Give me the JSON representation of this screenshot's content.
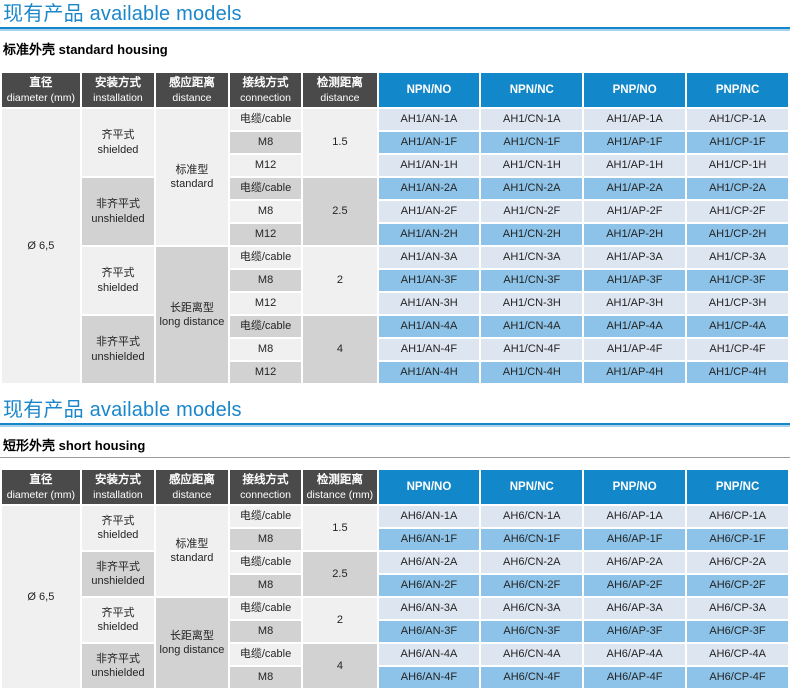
{
  "colors": {
    "accent_blue": "#1287c9",
    "title_blue": "#1b87ca",
    "header_dark": "#4a4a4a",
    "cell_gray_light": "#f0f0f0",
    "cell_gray_dark": "#d2d2d2",
    "cell_blue_light": "#dde5f1",
    "cell_blue_mid": "#8dc3e8"
  },
  "sections": [
    {
      "title_zh": "现有产品",
      "title_en": "available models",
      "subtitle_zh": "标准外壳",
      "subtitle_en": "standard housing",
      "table": {
        "headers": [
          {
            "type": "gray",
            "zh": "直径",
            "en": "diameter (mm)"
          },
          {
            "type": "gray",
            "zh": "安装方式",
            "en": "installation"
          },
          {
            "type": "gray",
            "zh": "感应距离",
            "en": "distance"
          },
          {
            "type": "gray",
            "zh": "接线方式",
            "en": "connection"
          },
          {
            "type": "gray",
            "zh": "检测距离",
            "en": "distance"
          },
          {
            "type": "blue",
            "label": "NPN/NO"
          },
          {
            "type": "blue",
            "label": "NPN/NC"
          },
          {
            "type": "blue",
            "label": "PNP/NO"
          },
          {
            "type": "blue",
            "label": "PNP/NC"
          }
        ],
        "rows": [
          [
            {
              "t": "Ø 6,5",
              "rs": 12,
              "tone": "g1",
              "n": "diameter-cell"
            },
            {
              "zh": "齐平式",
              "en": "shielded",
              "rs": 3,
              "tone": "g1",
              "n": "installation-cell"
            },
            {
              "zh": "标准型",
              "en": "standard",
              "rs": 6,
              "tone": "g1",
              "n": "sensing-type-cell"
            },
            {
              "t": "电缆/cable",
              "tone": "g1",
              "n": "connection-cell"
            },
            {
              "t": "1.5",
              "rs": 3,
              "tone": "g1",
              "n": "detection-distance-cell"
            },
            {
              "t": "AH1/AN-1A",
              "tone": "b1",
              "n": "model-cell"
            },
            {
              "t": "AH1/CN-1A",
              "tone": "b1",
              "n": "model-cell"
            },
            {
              "t": "AH1/AP-1A",
              "tone": "b1",
              "n": "model-cell"
            },
            {
              "t": "AH1/CP-1A",
              "tone": "b1",
              "n": "model-cell"
            }
          ],
          [
            {
              "t": "M8",
              "tone": "g2",
              "n": "connection-cell"
            },
            {
              "t": "AH1/AN-1F",
              "tone": "b2",
              "n": "model-cell"
            },
            {
              "t": "AH1/CN-1F",
              "tone": "b2",
              "n": "model-cell"
            },
            {
              "t": "AH1/AP-1F",
              "tone": "b2",
              "n": "model-cell"
            },
            {
              "t": "AH1/CP-1F",
              "tone": "b2",
              "n": "model-cell"
            }
          ],
          [
            {
              "t": "M12",
              "tone": "g1",
              "n": "connection-cell"
            },
            {
              "t": "AH1/AN-1H",
              "tone": "b1",
              "n": "model-cell"
            },
            {
              "t": "AH1/CN-1H",
              "tone": "b1",
              "n": "model-cell"
            },
            {
              "t": "AH1/AP-1H",
              "tone": "b1",
              "n": "model-cell"
            },
            {
              "t": "AH1/CP-1H",
              "tone": "b1",
              "n": "model-cell"
            }
          ],
          [
            {
              "zh": "非齐平式",
              "en": "unshielded",
              "rs": 3,
              "tone": "g2",
              "n": "installation-cell"
            },
            {
              "t": "电缆/cable",
              "tone": "g2",
              "n": "connection-cell"
            },
            {
              "t": "2.5",
              "rs": 3,
              "tone": "g2",
              "n": "detection-distance-cell"
            },
            {
              "t": "AH1/AN-2A",
              "tone": "b2",
              "n": "model-cell"
            },
            {
              "t": "AH1/CN-2A",
              "tone": "b2",
              "n": "model-cell"
            },
            {
              "t": "AH1/AP-2A",
              "tone": "b2",
              "n": "model-cell"
            },
            {
              "t": "AH1/CP-2A",
              "tone": "b2",
              "n": "model-cell"
            }
          ],
          [
            {
              "t": "M8",
              "tone": "g1",
              "n": "connection-cell"
            },
            {
              "t": "AH1/AN-2F",
              "tone": "b1",
              "n": "model-cell"
            },
            {
              "t": "AH1/CN-2F",
              "tone": "b1",
              "n": "model-cell"
            },
            {
              "t": "AH1/AP-2F",
              "tone": "b1",
              "n": "model-cell"
            },
            {
              "t": "AH1/CP-2F",
              "tone": "b1",
              "n": "model-cell"
            }
          ],
          [
            {
              "t": "M12",
              "tone": "g2",
              "n": "connection-cell"
            },
            {
              "t": "AH1/AN-2H",
              "tone": "b2",
              "n": "model-cell"
            },
            {
              "t": "AH1/CN-2H",
              "tone": "b2",
              "n": "model-cell"
            },
            {
              "t": "AH1/AP-2H",
              "tone": "b2",
              "n": "model-cell"
            },
            {
              "t": "AH1/CP-2H",
              "tone": "b2",
              "n": "model-cell"
            }
          ],
          [
            {
              "zh": "齐平式",
              "en": "shielded",
              "rs": 3,
              "tone": "g1",
              "n": "installation-cell"
            },
            {
              "zh": "长距离型",
              "en": "long distance",
              "rs": 6,
              "tone": "g2",
              "n": "sensing-type-cell"
            },
            {
              "t": "电缆/cable",
              "tone": "g1",
              "n": "connection-cell"
            },
            {
              "t": "2",
              "rs": 3,
              "tone": "g1",
              "n": "detection-distance-cell"
            },
            {
              "t": "AH1/AN-3A",
              "tone": "b1",
              "n": "model-cell"
            },
            {
              "t": "AH1/CN-3A",
              "tone": "b1",
              "n": "model-cell"
            },
            {
              "t": "AH1/AP-3A",
              "tone": "b1",
              "n": "model-cell"
            },
            {
              "t": "AH1/CP-3A",
              "tone": "b1",
              "n": "model-cell"
            }
          ],
          [
            {
              "t": "M8",
              "tone": "g2",
              "n": "connection-cell"
            },
            {
              "t": "AH1/AN-3F",
              "tone": "b2",
              "n": "model-cell"
            },
            {
              "t": "AH1/CN-3F",
              "tone": "b2",
              "n": "model-cell"
            },
            {
              "t": "AH1/AP-3F",
              "tone": "b2",
              "n": "model-cell"
            },
            {
              "t": "AH1/CP-3F",
              "tone": "b2",
              "n": "model-cell"
            }
          ],
          [
            {
              "t": "M12",
              "tone": "g1",
              "n": "connection-cell"
            },
            {
              "t": "AH1/AN-3H",
              "tone": "b1",
              "n": "model-cell"
            },
            {
              "t": "AH1/CN-3H",
              "tone": "b1",
              "n": "model-cell"
            },
            {
              "t": "AH1/AP-3H",
              "tone": "b1",
              "n": "model-cell"
            },
            {
              "t": "AH1/CP-3H",
              "tone": "b1",
              "n": "model-cell"
            }
          ],
          [
            {
              "zh": "非齐平式",
              "en": "unshielded",
              "rs": 3,
              "tone": "g2",
              "n": "installation-cell"
            },
            {
              "t": "电缆/cable",
              "tone": "g2",
              "n": "connection-cell"
            },
            {
              "t": "4",
              "rs": 3,
              "tone": "g2",
              "n": "detection-distance-cell"
            },
            {
              "t": "AH1/AN-4A",
              "tone": "b2",
              "n": "model-cell"
            },
            {
              "t": "AH1/CN-4A",
              "tone": "b2",
              "n": "model-cell"
            },
            {
              "t": "AH1/AP-4A",
              "tone": "b2",
              "n": "model-cell"
            },
            {
              "t": "AH1/CP-4A",
              "tone": "b2",
              "n": "model-cell"
            }
          ],
          [
            {
              "t": "M8",
              "tone": "g1",
              "n": "connection-cell"
            },
            {
              "t": "AH1/AN-4F",
              "tone": "b1",
              "n": "model-cell"
            },
            {
              "t": "AH1/CN-4F",
              "tone": "b1",
              "n": "model-cell"
            },
            {
              "t": "AH1/AP-4F",
              "tone": "b1",
              "n": "model-cell"
            },
            {
              "t": "AH1/CP-4F",
              "tone": "b1",
              "n": "model-cell"
            }
          ],
          [
            {
              "t": "M12",
              "tone": "g2",
              "n": "connection-cell"
            },
            {
              "t": "AH1/AN-4H",
              "tone": "b2",
              "n": "model-cell"
            },
            {
              "t": "AH1/CN-4H",
              "tone": "b2",
              "n": "model-cell"
            },
            {
              "t": "AH1/AP-4H",
              "tone": "b2",
              "n": "model-cell"
            },
            {
              "t": "AH1/CP-4H",
              "tone": "b2",
              "n": "model-cell"
            }
          ]
        ]
      }
    },
    {
      "title_zh": "现有产品",
      "title_en": "available models",
      "subtitle_zh": "短形外壳",
      "subtitle_en": "short housing",
      "table": {
        "headers": [
          {
            "type": "gray",
            "zh": "直径",
            "en": "diameter (mm)"
          },
          {
            "type": "gray",
            "zh": "安装方式",
            "en": "installation"
          },
          {
            "type": "gray",
            "zh": "感应距离",
            "en": "distance"
          },
          {
            "type": "gray",
            "zh": "接线方式",
            "en": "connection"
          },
          {
            "type": "gray",
            "zh": "检测距离",
            "en": "distance (mm)"
          },
          {
            "type": "blue",
            "label": "NPN/NO"
          },
          {
            "type": "blue",
            "label": "NPN/NC"
          },
          {
            "type": "blue",
            "label": "PNP/NO"
          },
          {
            "type": "blue",
            "label": "PNP/NC"
          }
        ],
        "rows": [
          [
            {
              "t": "Ø 6,5",
              "rs": 8,
              "tone": "g1",
              "n": "diameter-cell"
            },
            {
              "zh": "齐平式",
              "en": "shielded",
              "rs": 2,
              "tone": "g1",
              "n": "installation-cell"
            },
            {
              "zh": "标准型",
              "en": "standard",
              "rs": 4,
              "tone": "g1",
              "n": "sensing-type-cell"
            },
            {
              "t": "电缆/cable",
              "tone": "g1",
              "n": "connection-cell"
            },
            {
              "t": "1.5",
              "rs": 2,
              "tone": "g1",
              "n": "detection-distance-cell"
            },
            {
              "t": "AH6/AN-1A",
              "tone": "b1",
              "n": "model-cell"
            },
            {
              "t": "AH6/CN-1A",
              "tone": "b1",
              "n": "model-cell"
            },
            {
              "t": "AH6/AP-1A",
              "tone": "b1",
              "n": "model-cell"
            },
            {
              "t": "AH6/CP-1A",
              "tone": "b1",
              "n": "model-cell"
            }
          ],
          [
            {
              "t": "M8",
              "tone": "g2",
              "n": "connection-cell"
            },
            {
              "t": "AH6/AN-1F",
              "tone": "b2",
              "n": "model-cell"
            },
            {
              "t": "AH6/CN-1F",
              "tone": "b2",
              "n": "model-cell"
            },
            {
              "t": "AH6/AP-1F",
              "tone": "b2",
              "n": "model-cell"
            },
            {
              "t": "AH6/CP-1F",
              "tone": "b2",
              "n": "model-cell"
            }
          ],
          [
            {
              "zh": "非齐平式",
              "en": "unshielded",
              "rs": 2,
              "tone": "g2",
              "n": "installation-cell"
            },
            {
              "t": "电缆/cable",
              "tone": "g1",
              "n": "connection-cell"
            },
            {
              "t": "2.5",
              "rs": 2,
              "tone": "g2",
              "n": "detection-distance-cell"
            },
            {
              "t": "AH6/AN-2A",
              "tone": "b1",
              "n": "model-cell"
            },
            {
              "t": "AH6/CN-2A",
              "tone": "b1",
              "n": "model-cell"
            },
            {
              "t": "AH6/AP-2A",
              "tone": "b1",
              "n": "model-cell"
            },
            {
              "t": "AH6/CP-2A",
              "tone": "b1",
              "n": "model-cell"
            }
          ],
          [
            {
              "t": "M8",
              "tone": "g2",
              "n": "connection-cell"
            },
            {
              "t": "AH6/AN-2F",
              "tone": "b2",
              "n": "model-cell"
            },
            {
              "t": "AH6/CN-2F",
              "tone": "b2",
              "n": "model-cell"
            },
            {
              "t": "AH6/AP-2F",
              "tone": "b2",
              "n": "model-cell"
            },
            {
              "t": "AH6/CP-2F",
              "tone": "b2",
              "n": "model-cell"
            }
          ],
          [
            {
              "zh": "齐平式",
              "en": "shielded",
              "rs": 2,
              "tone": "g1",
              "n": "installation-cell"
            },
            {
              "zh": "长距离型",
              "en": "long distance",
              "rs": 4,
              "tone": "g2",
              "n": "sensing-type-cell"
            },
            {
              "t": "电缆/cable",
              "tone": "g1",
              "n": "connection-cell"
            },
            {
              "t": "2",
              "rs": 2,
              "tone": "g1",
              "n": "detection-distance-cell"
            },
            {
              "t": "AH6/AN-3A",
              "tone": "b1",
              "n": "model-cell"
            },
            {
              "t": "AH6/CN-3A",
              "tone": "b1",
              "n": "model-cell"
            },
            {
              "t": "AH6/AP-3A",
              "tone": "b1",
              "n": "model-cell"
            },
            {
              "t": "AH6/CP-3A",
              "tone": "b1",
              "n": "model-cell"
            }
          ],
          [
            {
              "t": "M8",
              "tone": "g2",
              "n": "connection-cell"
            },
            {
              "t": "AH6/AN-3F",
              "tone": "b2",
              "n": "model-cell"
            },
            {
              "t": "AH6/CN-3F",
              "tone": "b2",
              "n": "model-cell"
            },
            {
              "t": "AH6/AP-3F",
              "tone": "b2",
              "n": "model-cell"
            },
            {
              "t": "AH6/CP-3F",
              "tone": "b2",
              "n": "model-cell"
            }
          ],
          [
            {
              "zh": "非齐平式",
              "en": "unshielded",
              "rs": 2,
              "tone": "g2",
              "n": "installation-cell"
            },
            {
              "t": "电缆/cable",
              "tone": "g1",
              "n": "connection-cell"
            },
            {
              "t": "4",
              "rs": 2,
              "tone": "g2",
              "n": "detection-distance-cell"
            },
            {
              "t": "AH6/AN-4A",
              "tone": "b1",
              "n": "model-cell"
            },
            {
              "t": "AH6/CN-4A",
              "tone": "b1",
              "n": "model-cell"
            },
            {
              "t": "AH6/AP-4A",
              "tone": "b1",
              "n": "model-cell"
            },
            {
              "t": "AH6/CP-4A",
              "tone": "b1",
              "n": "model-cell"
            }
          ],
          [
            {
              "t": "M8",
              "tone": "g2",
              "n": "connection-cell"
            },
            {
              "t": "AH6/AN-4F",
              "tone": "b2",
              "n": "model-cell"
            },
            {
              "t": "AH6/CN-4F",
              "tone": "b2",
              "n": "model-cell"
            },
            {
              "t": "AH6/AP-4F",
              "tone": "b2",
              "n": "model-cell"
            },
            {
              "t": "AH6/CP-4F",
              "tone": "b2",
              "n": "model-cell"
            }
          ]
        ]
      }
    }
  ]
}
